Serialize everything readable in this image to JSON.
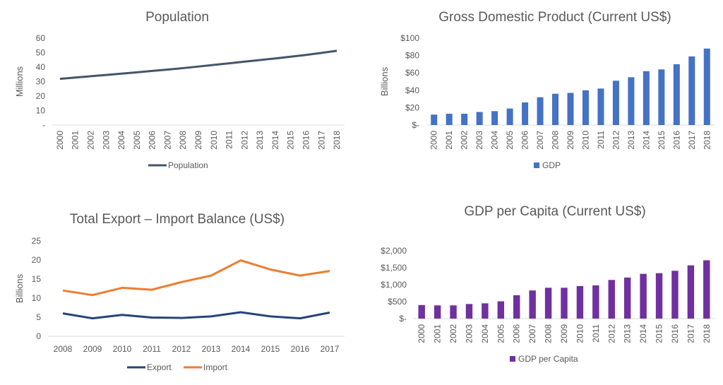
{
  "chart_data": [
    {
      "id": "population",
      "type": "line",
      "title": "Population",
      "ylabel": "Millions",
      "ylim": [
        0,
        60
      ],
      "yticks": [
        "-",
        "10",
        "20",
        "30",
        "40",
        "50",
        "60"
      ],
      "grid": false,
      "legend": "bottom",
      "x": [
        "2000",
        "2001",
        "2002",
        "2003",
        "2004",
        "2005",
        "2006",
        "2007",
        "2008",
        "2009",
        "2010",
        "2011",
        "2012",
        "2013",
        "2014",
        "2015",
        "2016",
        "2017",
        "2018"
      ],
      "series": [
        {
          "name": "Population",
          "color": "#44546A",
          "values": [
            31.9,
            32.8,
            33.7,
            34.6,
            35.5,
            36.4,
            37.4,
            38.3,
            39.3,
            40.4,
            41.5,
            42.6,
            43.8,
            44.9,
            46.0,
            47.2,
            48.4,
            49.8,
            51.3
          ]
        }
      ]
    },
    {
      "id": "gdp",
      "type": "bar",
      "title": "Gross Domestic Product (Current US$)",
      "ylabel": "Billions",
      "ylim": [
        0,
        100
      ],
      "yticks": [
        "$-",
        "$20",
        "$40",
        "$60",
        "$80",
        "$100"
      ],
      "grid": false,
      "legend": "bottom",
      "x": [
        "2000",
        "2001",
        "2002",
        "2003",
        "2004",
        "2005",
        "2006",
        "2007",
        "2008",
        "2009",
        "2010",
        "2011",
        "2012",
        "2013",
        "2014",
        "2015",
        "2016",
        "2017",
        "2018"
      ],
      "series": [
        {
          "name": "GDP",
          "color": "#4472C4",
          "values": [
            12,
            13,
            13,
            15,
            16,
            19,
            26,
            32,
            36,
            37,
            40,
            42,
            51,
            55,
            62,
            64,
            70,
            79,
            88
          ]
        }
      ]
    },
    {
      "id": "trade",
      "type": "line",
      "title": "Total Export – Import Balance (US$)",
      "ylabel": "Billions",
      "ylim": [
        0,
        25
      ],
      "yticks": [
        "0",
        "5",
        "10",
        "15",
        "20",
        "25"
      ],
      "grid": false,
      "legend": "bottom",
      "x": [
        "2008",
        "2009",
        "2010",
        "2011",
        "2012",
        "2013",
        "2014",
        "2015",
        "2016",
        "2017"
      ],
      "series": [
        {
          "name": "Export",
          "color": "#264478",
          "values": [
            6.0,
            4.7,
            5.6,
            4.9,
            4.8,
            5.2,
            6.3,
            5.2,
            4.7,
            6.2
          ]
        },
        {
          "name": "Import",
          "color": "#ED7D31",
          "values": [
            12.0,
            10.8,
            12.7,
            12.2,
            14.2,
            15.9,
            19.9,
            17.5,
            15.9,
            17.1
          ]
        }
      ]
    },
    {
      "id": "gdppc",
      "type": "bar",
      "title": "GDP per Capita (Current US$)",
      "ylabel": "",
      "ylim": [
        0,
        2000
      ],
      "yticks": [
        "$-",
        "$500",
        "$1,000",
        "$1,500",
        "$2,000"
      ],
      "grid": false,
      "legend": "bottom",
      "x": [
        "2000",
        "2001",
        "2002",
        "2003",
        "2004",
        "2005",
        "2006",
        "2007",
        "2008",
        "2009",
        "2010",
        "2011",
        "2012",
        "2013",
        "2014",
        "2015",
        "2016",
        "2017",
        "2018"
      ],
      "series": [
        {
          "name": "GDP per Capita",
          "color": "#7030A0",
          "values": [
            400,
            390,
            390,
            430,
            450,
            510,
            690,
            830,
            910,
            910,
            960,
            980,
            1140,
            1210,
            1320,
            1340,
            1410,
            1570,
            1720
          ]
        }
      ]
    }
  ]
}
